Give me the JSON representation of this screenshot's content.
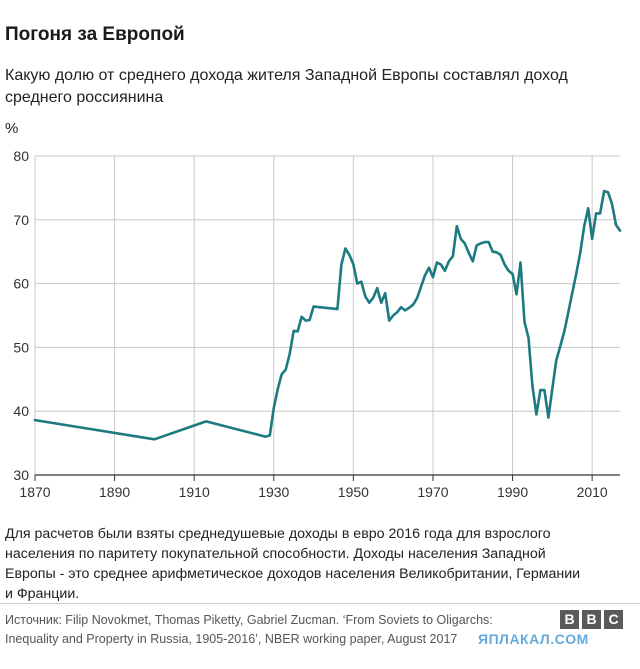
{
  "header": {
    "title": "Погоня за Европой",
    "subtitle": "Какую долю от среднего дохода жителя Западной Европы составлял доход среднего россиянина",
    "unit": "%"
  },
  "note": {
    "lines": [
      "Для расчетов были взяты среднедушевые доходы в евро 2016 года для взрослого",
      "населения по паритету покупательной способности. Доходы населения Западной",
      "Европы - это среднее арифметическое доходов населения Великобритании, Германии",
      "и Франции."
    ]
  },
  "source": {
    "lines": [
      "Источник: Filip Novokmet, Thomas Piketty, Gabriel Zucman. ‘From Soviets to Oligarchs:",
      "Inequality and Property in Russia, 1905-2016’, NBER working paper, August 2017"
    ]
  },
  "logo": {
    "letters": [
      "B",
      "B",
      "C"
    ]
  },
  "watermark": "ЯПЛАКАЛ.COM",
  "colors": {
    "line": "#1c7a80",
    "grid": "#c8c8c8",
    "axis": "#333333"
  },
  "chart_data": {
    "type": "line",
    "title": "",
    "xlabel": "",
    "ylabel": "%",
    "xlim": [
      1870,
      2017
    ],
    "ylim": [
      30,
      80
    ],
    "x_ticks": [
      1870,
      1890,
      1910,
      1930,
      1950,
      1970,
      1990,
      2010
    ],
    "y_ticks": [
      30,
      40,
      50,
      60,
      70,
      80
    ],
    "grid": "vertical and horizontal",
    "series": [
      {
        "name": "",
        "points": [
          [
            1870,
            38.6
          ],
          [
            1900,
            35.6
          ],
          [
            1913,
            38.4
          ],
          [
            1928,
            36.0
          ],
          [
            1929,
            36.2
          ],
          [
            1930,
            40.5
          ],
          [
            1931,
            43.5
          ],
          [
            1932,
            45.8
          ],
          [
            1933,
            46.5
          ],
          [
            1934,
            49.0
          ],
          [
            1935,
            52.6
          ],
          [
            1936,
            52.5
          ],
          [
            1937,
            54.8
          ],
          [
            1938,
            54.2
          ],
          [
            1939,
            54.3
          ],
          [
            1940,
            56.4
          ],
          [
            1946,
            56.0
          ],
          [
            1947,
            63.0
          ],
          [
            1948,
            65.5
          ],
          [
            1949,
            64.5
          ],
          [
            1950,
            63.0
          ],
          [
            1951,
            60.0
          ],
          [
            1952,
            60.3
          ],
          [
            1953,
            58.0
          ],
          [
            1954,
            57.0
          ],
          [
            1955,
            57.8
          ],
          [
            1956,
            59.3
          ],
          [
            1957,
            57.0
          ],
          [
            1958,
            58.5
          ],
          [
            1959,
            54.2
          ],
          [
            1960,
            55.0
          ],
          [
            1961,
            55.5
          ],
          [
            1962,
            56.3
          ],
          [
            1963,
            55.8
          ],
          [
            1964,
            56.2
          ],
          [
            1965,
            56.7
          ],
          [
            1966,
            57.7
          ],
          [
            1967,
            59.5
          ],
          [
            1968,
            61.3
          ],
          [
            1969,
            62.5
          ],
          [
            1970,
            61.0
          ],
          [
            1971,
            63.3
          ],
          [
            1972,
            63.0
          ],
          [
            1973,
            62.0
          ],
          [
            1974,
            63.5
          ],
          [
            1975,
            64.3
          ],
          [
            1976,
            69.0
          ],
          [
            1977,
            67.0
          ],
          [
            1978,
            66.3
          ],
          [
            1979,
            64.8
          ],
          [
            1980,
            63.5
          ],
          [
            1981,
            66.0
          ],
          [
            1982,
            66.3
          ],
          [
            1983,
            66.5
          ],
          [
            1984,
            66.5
          ],
          [
            1985,
            65.0
          ],
          [
            1986,
            64.9
          ],
          [
            1987,
            64.5
          ],
          [
            1988,
            63.0
          ],
          [
            1989,
            62.0
          ],
          [
            1990,
            61.5
          ],
          [
            1991,
            58.3
          ],
          [
            1992,
            63.3
          ],
          [
            1993,
            54.0
          ],
          [
            1994,
            51.5
          ],
          [
            1995,
            44.0
          ],
          [
            1996,
            39.5
          ],
          [
            1997,
            43.3
          ],
          [
            1998,
            43.3
          ],
          [
            1999,
            39.0
          ],
          [
            2000,
            43.5
          ],
          [
            2001,
            48.0
          ],
          [
            2002,
            50.2
          ],
          [
            2003,
            52.5
          ],
          [
            2004,
            55.5
          ],
          [
            2005,
            58.5
          ],
          [
            2006,
            61.5
          ],
          [
            2007,
            64.8
          ],
          [
            2008,
            69.0
          ],
          [
            2009,
            71.8
          ],
          [
            2010,
            67.0
          ],
          [
            2011,
            71.0
          ],
          [
            2012,
            71.0
          ],
          [
            2013,
            74.5
          ],
          [
            2014,
            74.3
          ],
          [
            2015,
            72.5
          ],
          [
            2016,
            69.2
          ],
          [
            2017,
            68.3
          ]
        ]
      }
    ]
  }
}
